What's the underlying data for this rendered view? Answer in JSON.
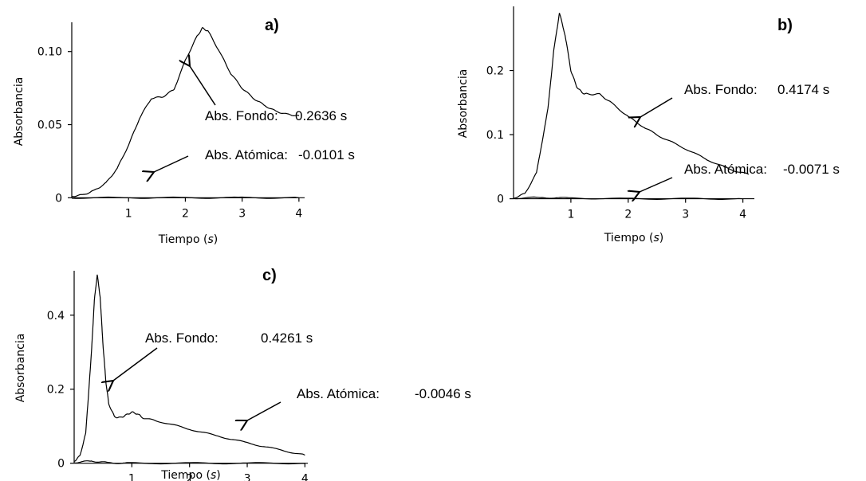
{
  "chart_data": [
    {
      "type": "line",
      "panel_label": "a)",
      "xlabel": "Tiempo",
      "xunit": "s",
      "ylabel": "Absorbancia",
      "xlim": [
        0,
        4.1
      ],
      "ylim": [
        -0.002,
        0.12
      ],
      "xticks": [
        1,
        2,
        3,
        4
      ],
      "yticks": [
        0,
        0.05,
        0.1
      ],
      "ytick_labels": [
        "0",
        "0.05",
        "0.10"
      ],
      "series": [
        {
          "x": [
            0.0,
            0.2,
            0.4,
            0.6,
            0.8,
            1.0,
            1.2,
            1.4,
            1.6,
            1.8,
            2.0,
            2.2,
            2.3,
            2.4,
            2.6,
            2.8,
            3.0,
            3.2,
            3.4,
            3.6,
            3.8,
            4.0
          ],
          "y": [
            0.001,
            0.002,
            0.005,
            0.01,
            0.02,
            0.036,
            0.055,
            0.068,
            0.069,
            0.074,
            0.094,
            0.11,
            0.116,
            0.114,
            0.1,
            0.085,
            0.075,
            0.068,
            0.063,
            0.059,
            0.057,
            0.056
          ]
        },
        {
          "x": [
            0.0,
            1.0,
            2.0,
            3.0,
            4.0
          ],
          "y": [
            0.0,
            0.0,
            0.0,
            0.0,
            0.0
          ]
        }
      ],
      "annotations": [
        {
          "name": "Abs. Fondo:",
          "value": "0.2636 s",
          "points_to": [
            2.05,
            0.099
          ]
        },
        {
          "name": "Abs. Atómica:",
          "value": "-0.0101 s",
          "points_to": [
            1.4,
            0.018
          ]
        }
      ]
    },
    {
      "type": "line",
      "panel_label": "b)",
      "xlabel": "Tiempo",
      "xunit": "s",
      "ylabel": "Absorbancia",
      "xlim": [
        0,
        4.2
      ],
      "ylim": [
        -0.003,
        0.3
      ],
      "xticks": [
        1,
        2,
        3,
        4
      ],
      "yticks": [
        0,
        0.1,
        0.2
      ],
      "ytick_labels": [
        "0",
        "0.1",
        "0.2"
      ],
      "series": [
        {
          "x": [
            0.0,
            0.2,
            0.4,
            0.6,
            0.7,
            0.8,
            0.9,
            1.0,
            1.1,
            1.2,
            1.3,
            1.5,
            1.7,
            2.0,
            2.3,
            2.6,
            3.0,
            3.4,
            3.8,
            4.1
          ],
          "y": [
            0.001,
            0.008,
            0.04,
            0.14,
            0.23,
            0.29,
            0.255,
            0.2,
            0.175,
            0.165,
            0.163,
            0.163,
            0.15,
            0.128,
            0.11,
            0.095,
            0.078,
            0.06,
            0.045,
            0.038
          ]
        },
        {
          "x": [
            0.0,
            0.5,
            1.0,
            2.0,
            3.0,
            4.0
          ],
          "y": [
            0.001,
            0.002,
            0.001,
            0.0,
            0.0,
            0.0
          ]
        }
      ],
      "annotations": [
        {
          "name": "Abs. Fondo:",
          "value": "0.4174 s",
          "points_to": [
            1.95,
            0.128
          ]
        },
        {
          "name": "Abs. Atómica:",
          "value": "-0.0071 s",
          "points_to": [
            2.05,
            0.012
          ]
        }
      ]
    },
    {
      "type": "line",
      "panel_label": "c)",
      "xlabel": "Tiempo",
      "xunit": "s",
      "ylabel": "Absorbancia",
      "xlim": [
        0,
        4.05
      ],
      "ylim": [
        -0.005,
        0.52
      ],
      "xticks": [
        1,
        2,
        3,
        4
      ],
      "yticks": [
        0,
        0.2,
        0.4
      ],
      "ytick_labels": [
        "0",
        "0.2",
        "0.4"
      ],
      "series": [
        {
          "x": [
            0.0,
            0.1,
            0.2,
            0.3,
            0.35,
            0.4,
            0.45,
            0.5,
            0.55,
            0.6,
            0.7,
            0.8,
            0.9,
            1.0,
            1.1,
            1.2,
            1.5,
            2.0,
            2.5,
            3.0,
            3.5,
            4.0
          ],
          "y": [
            0.005,
            0.02,
            0.08,
            0.3,
            0.44,
            0.51,
            0.45,
            0.32,
            0.22,
            0.16,
            0.125,
            0.123,
            0.13,
            0.138,
            0.133,
            0.122,
            0.112,
            0.092,
            0.073,
            0.055,
            0.038,
            0.022
          ]
        },
        {
          "x": [
            0.0,
            0.3,
            0.6,
            1.0,
            2.0,
            3.0,
            4.0
          ],
          "y": [
            0.002,
            0.006,
            0.001,
            0.0,
            0.0,
            0.0,
            0.0
          ]
        }
      ],
      "annotations": [
        {
          "name": "Abs. Fondo:",
          "value": "0.4261 s",
          "points_to": [
            0.65,
            0.16
          ]
        },
        {
          "name": "Abs. Atómica:",
          "value": "-0.0046 s",
          "points_to": [
            3.0,
            0.055
          ]
        }
      ]
    }
  ]
}
